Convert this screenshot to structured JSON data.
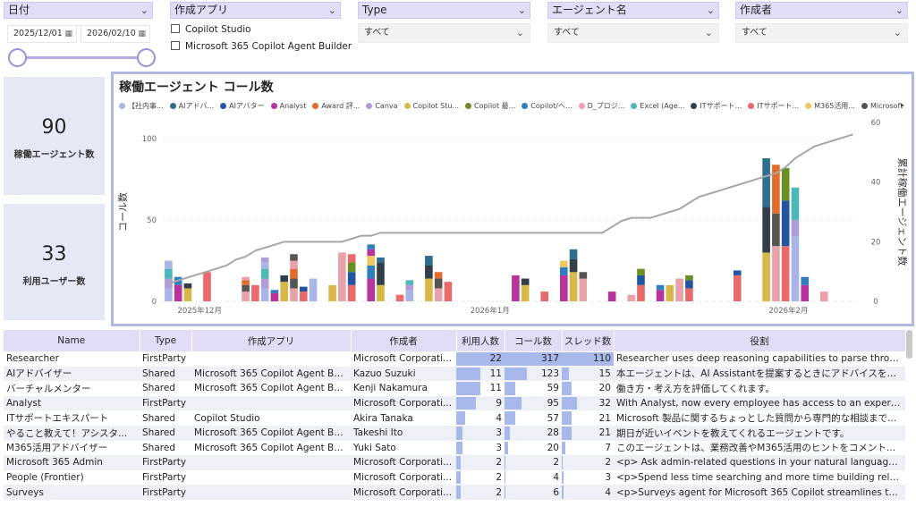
{
  "slicers": {
    "date": {
      "label": "日付",
      "start": "2025/12/01",
      "end": "2026/02/10"
    },
    "app": {
      "label": "作成アプリ",
      "options": [
        "Copilot Studio",
        "Microsoft 365 Copilot Agent Builder"
      ]
    },
    "type": {
      "label": "Type",
      "value": "すべて"
    },
    "agent": {
      "label": "エージェント名",
      "value": "すべて"
    },
    "creator": {
      "label": "作成者",
      "value": "すべて"
    }
  },
  "cards": [
    {
      "value": "90",
      "label": "稼働エージェント数"
    },
    {
      "value": "33",
      "label": "利用ユーザー数"
    }
  ],
  "chart": {
    "title": "稼働エージェント コール数",
    "legend": [
      {
        "name": "【社内事...",
        "color": "#a9b5e6"
      },
      {
        "name": "AIアドバ...",
        "color": "#2f6f8e"
      },
      {
        "name": "AIアバター",
        "color": "#2255a4"
      },
      {
        "name": "Analyst",
        "color": "#b8339a"
      },
      {
        "name": "Award 評...",
        "color": "#e36c2c"
      },
      {
        "name": "Canva",
        "color": "#b19cd9"
      },
      {
        "name": "Copilot Stu...",
        "color": "#d9b84a"
      },
      {
        "name": "Copilot 最...",
        "color": "#6b8e23"
      },
      {
        "name": "Copilot/ヘ...",
        "color": "#2e7fbf"
      },
      {
        "name": "D_プロジ...",
        "color": "#e8a1a8"
      },
      {
        "name": "Excel (Age...",
        "color": "#4cb8b8"
      },
      {
        "name": "ITサポート...",
        "color": "#333f48"
      },
      {
        "name": "ITサポート...",
        "color": "#e86a6a"
      },
      {
        "name": "M365活用...",
        "color": "#f0c75e"
      },
      {
        "name": "Microsoft ...",
        "color": "#555555"
      }
    ]
  },
  "chart_data": {
    "type": "bar",
    "ylabel": "コール数",
    "y2label": "累計稼働エージェント数",
    "ylim": [
      0,
      110
    ],
    "y2lim": [
      0,
      60
    ],
    "yticks": [
      "0",
      "50",
      "100"
    ],
    "y2ticks": [
      "0",
      "20",
      "40",
      "60"
    ],
    "xticks": [
      "2025年12月",
      "2026年1月",
      "2026年2月"
    ],
    "days": 72,
    "stacks": [
      [
        8,
        6,
        6,
        5,
        0
      ],
      [
        10,
        5,
        0,
        0,
        0
      ],
      [
        8,
        3,
        0,
        0,
        0
      ],
      [
        0,
        0,
        0,
        0,
        0
      ],
      [
        18,
        0,
        0,
        0,
        0
      ],
      [
        0,
        0,
        0,
        0,
        0
      ],
      [
        0,
        0,
        0,
        0,
        0
      ],
      [
        0,
        0,
        0,
        0,
        0
      ],
      [
        6,
        4,
        3,
        2,
        0
      ],
      [
        10,
        0,
        0,
        0,
        0
      ],
      [
        8,
        6,
        6,
        4,
        3
      ],
      [
        5,
        2,
        0,
        0,
        0
      ],
      [
        12,
        4,
        0,
        0,
        0
      ],
      [
        8,
        6,
        6,
        5,
        4
      ],
      [
        6,
        3,
        0,
        0,
        0
      ],
      [
        14,
        0,
        0,
        0,
        0
      ],
      [
        0,
        0,
        0,
        0,
        0
      ],
      [
        10,
        0,
        0,
        0,
        0
      ],
      [
        30,
        0,
        0,
        0,
        0
      ],
      [
        10,
        8,
        6,
        5,
        0
      ],
      [
        0,
        0,
        0,
        0,
        0
      ],
      [
        14,
        8,
        6,
        4,
        3
      ],
      [
        10,
        14,
        3,
        0,
        0
      ],
      [
        0,
        0,
        0,
        0,
        0
      ],
      [
        4,
        0,
        0,
        0,
        0
      ],
      [
        7,
        3,
        3,
        0,
        0
      ],
      [
        0,
        0,
        0,
        0,
        0
      ],
      [
        14,
        8,
        6,
        0,
        0
      ],
      [
        8,
        6,
        4,
        0,
        0
      ],
      [
        12,
        0,
        0,
        0,
        0
      ],
      [
        0,
        0,
        0,
        0,
        0
      ],
      [
        0,
        0,
        0,
        0,
        0
      ],
      [
        0,
        0,
        0,
        0,
        0
      ],
      [
        0,
        0,
        0,
        0,
        0
      ],
      [
        0,
        0,
        0,
        0,
        0
      ],
      [
        0,
        0,
        0,
        0,
        0
      ],
      [
        16,
        0,
        0,
        0,
        0
      ],
      [
        10,
        4,
        0,
        0,
        0
      ],
      [
        0,
        0,
        0,
        0,
        0
      ],
      [
        6,
        0,
        0,
        0,
        0
      ],
      [
        0,
        0,
        0,
        0,
        0
      ],
      [
        16,
        5,
        4,
        0,
        0
      ],
      [
        18,
        8,
        6,
        0,
        0
      ],
      [
        14,
        4,
        0,
        0,
        0
      ],
      [
        0,
        0,
        0,
        0,
        0
      ],
      [
        0,
        0,
        0,
        0,
        0
      ],
      [
        6,
        0,
        0,
        0,
        0
      ],
      [
        0,
        0,
        0,
        0,
        0
      ],
      [
        4,
        0,
        0,
        0,
        0
      ],
      [
        10,
        6,
        4,
        0,
        0
      ],
      [
        0,
        0,
        0,
        0,
        0
      ],
      [
        7,
        3,
        0,
        0,
        0
      ],
      [
        10,
        0,
        0,
        0,
        0
      ],
      [
        14,
        0,
        0,
        0,
        0
      ],
      [
        8,
        5,
        3,
        0,
        0
      ],
      [
        0,
        0,
        0,
        0,
        0
      ],
      [
        0,
        0,
        0,
        0,
        0
      ],
      [
        0,
        0,
        0,
        0,
        0
      ],
      [
        0,
        0,
        0,
        0,
        0
      ],
      [
        16,
        3,
        0,
        0,
        0
      ],
      [
        0,
        0,
        0,
        0,
        0
      ],
      [
        0,
        0,
        0,
        0,
        0
      ],
      [
        30,
        28,
        30,
        0,
        0
      ],
      [
        34,
        20,
        30,
        0,
        0
      ],
      [
        34,
        28,
        20,
        0,
        0
      ],
      [
        40,
        10,
        20,
        0,
        0
      ],
      [
        10,
        5,
        0,
        0,
        0
      ],
      [
        0,
        0,
        0,
        0,
        0
      ],
      [
        6,
        0,
        0,
        0,
        0
      ],
      [
        0,
        0,
        0,
        0,
        0
      ],
      [
        0,
        0,
        0,
        0,
        0
      ],
      [
        0,
        0,
        0,
        0,
        0
      ]
    ],
    "cumulative": [
      6,
      7,
      8,
      9,
      10,
      11,
      12,
      14,
      15,
      17,
      18,
      19,
      20,
      20,
      20,
      20,
      20,
      20,
      20,
      21,
      22,
      22,
      23,
      23,
      23,
      23,
      23,
      23,
      23,
      23,
      23,
      23,
      23,
      23,
      23,
      23,
      23,
      23,
      23,
      23,
      23,
      23,
      23,
      23,
      23,
      23,
      25,
      27,
      28,
      28,
      28,
      29,
      30,
      31,
      33,
      35,
      36,
      37,
      38,
      39,
      40,
      41,
      42,
      43,
      45,
      48,
      50,
      52,
      53,
      54,
      55,
      56
    ]
  },
  "table": {
    "headers": [
      "Name",
      "Type",
      "作成アプリ",
      "作成者",
      "利用人数",
      "コール数",
      "スレッド数",
      "役割"
    ],
    "rows": [
      [
        "Researcher",
        "FirstParty",
        "",
        "Microsoft Corporati...",
        "22",
        "317",
        "110",
        "Researcher uses deep reasoning capabilities to parse through the..."
      ],
      [
        "AIアドバイザー",
        "Shared",
        "Microsoft 365 Copilot Agent Build...",
        "Kazuo Suzuki",
        "11",
        "123",
        "15",
        "本エージェントは、AI Assistantを提案するときにアドバイスを行..."
      ],
      [
        "バーチャルメンター",
        "Shared",
        "Microsoft 365 Copilot Agent Build...",
        "Kenji Nakamura",
        "11",
        "59",
        "20",
        "働き方・考え方を評価してくれます。"
      ],
      [
        "Analyst",
        "FirstParty",
        "",
        "Microsoft Corporati...",
        "9",
        "95",
        "32",
        "With Analyst, now every employee has access to an expert agent ..."
      ],
      [
        "ITサポートエキスパート",
        "Shared",
        "Copilot Studio",
        "Akira Tanaka",
        "4",
        "57",
        "21",
        "Microsoft 製品に関するちょっとした質問から専門的な相談まで..."
      ],
      [
        "やること教えて！アシスタ...",
        "Shared",
        "Microsoft 365 Copilot Agent Build...",
        "Takeshi Ito",
        "3",
        "28",
        "21",
        "期日が近いイベントを教えてくれるエージェントです。"
      ],
      [
        "M365活用アドバイザー",
        "Shared",
        "Microsoft 365 Copilot Agent Build...",
        "Yuki Sato",
        "3",
        "20",
        "7",
        "このエージェントは、業務改善やM365活用のヒントをコメント..."
      ],
      [
        "Microsoft 365 Admin",
        "FirstParty",
        "",
        "Microsoft Corporati...",
        "2",
        "2",
        "2",
        "<p>   Ask admin-related questions in your natural language and ..."
      ],
      [
        "People (Frontier)",
        "FirstParty",
        "",
        "Microsoft Corporati...",
        "2",
        "4",
        "3",
        "<p>Spend less time searching and more time building relationshi..."
      ],
      [
        "Surveys",
        "FirstParty",
        "",
        "Microsoft Corporati...",
        "2",
        "6",
        "4",
        "<p>Surveys agent for Microsoft 365 Copilot streamlines the entir..."
      ]
    ]
  }
}
